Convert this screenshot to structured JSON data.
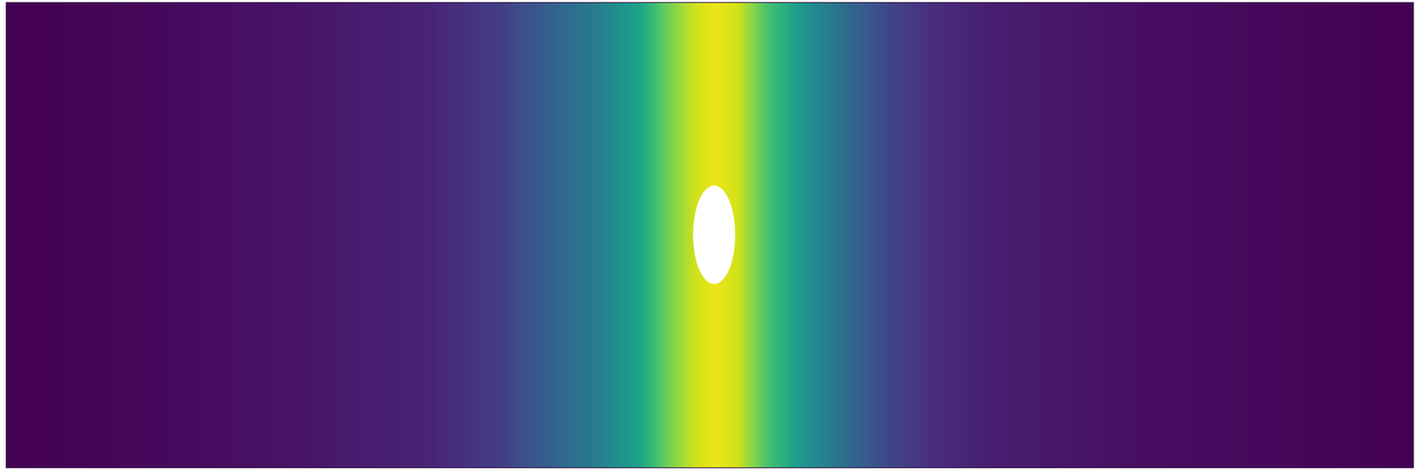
{
  "chart_data": {
    "type": "heatmap",
    "color": "viridis",
    "x": [
      0,
      0.3,
      0.6,
      0.9,
      1.05,
      1.14,
      1.26,
      1.35,
      1.41,
      1.47,
      1.51,
      1.56,
      1.62,
      1.71,
      1.8,
      1.89,
      1.98,
      2.1,
      2.4,
      2.7,
      3
    ],
    "values": [
      0,
      0.02,
      0.05,
      0.1,
      0.18,
      0.28,
      0.42,
      0.58,
      0.78,
      0.93,
      0.97,
      0.93,
      0.72,
      0.5,
      0.33,
      0.2,
      0.13,
      0.08,
      0.04,
      0.02,
      0
    ],
    "xlim": [
      0,
      3
    ],
    "ylim": [
      0,
      1
    ],
    "color_range": [
      0,
      1
    ],
    "tick_labels": false,
    "obstacle": {
      "center": [
        1.51,
        0.5
      ],
      "radii": [
        0.045,
        0.106
      ],
      "color": "#ffffff"
    }
  }
}
